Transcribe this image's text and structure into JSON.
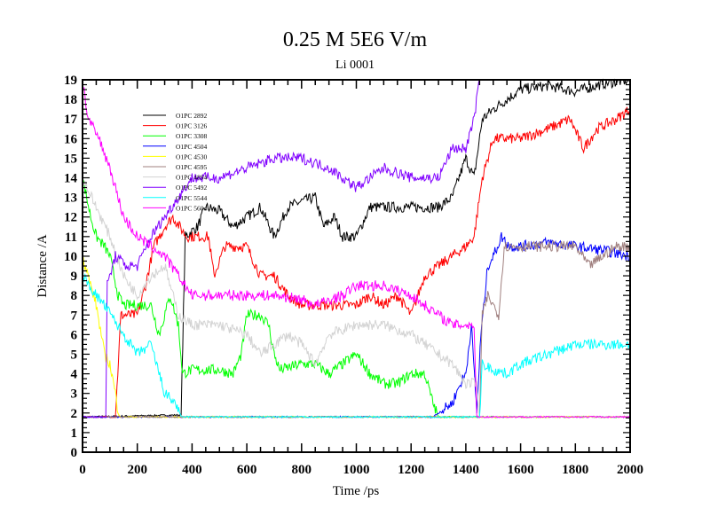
{
  "chart_data": {
    "type": "line",
    "title": "0.25 M 5E6 V/m",
    "subtitle": "Li 0001",
    "xlabel": "Time /ps",
    "ylabel": "Distance /A",
    "xlim": [
      0,
      2000
    ],
    "ylim": [
      0,
      19
    ],
    "xticks": [
      0,
      200,
      400,
      600,
      800,
      1000,
      1200,
      1400,
      1600,
      1800,
      2000
    ],
    "yticks": [
      0,
      1,
      2,
      3,
      4,
      5,
      6,
      7,
      8,
      9,
      10,
      11,
      12,
      13,
      14,
      15,
      16,
      17,
      18,
      19
    ],
    "grid": false,
    "legend_position": "top-left",
    "series": [
      {
        "name": "O1PC 2892",
        "color": "#000000",
        "points": [
          [
            0,
            1.8
          ],
          [
            360,
            1.9
          ],
          [
            375,
            11
          ],
          [
            420,
            11.5
          ],
          [
            450,
            12.5
          ],
          [
            500,
            12.3
          ],
          [
            550,
            11.5
          ],
          [
            600,
            12
          ],
          [
            650,
            12.5
          ],
          [
            700,
            11
          ],
          [
            750,
            12.5
          ],
          [
            800,
            12.8
          ],
          [
            850,
            13
          ],
          [
            880,
            11.5
          ],
          [
            920,
            12
          ],
          [
            950,
            11
          ],
          [
            1000,
            11
          ],
          [
            1050,
            12.5
          ],
          [
            1100,
            12.5
          ],
          [
            1200,
            12.5
          ],
          [
            1300,
            12.5
          ],
          [
            1350,
            13
          ],
          [
            1400,
            15
          ],
          [
            1430,
            14
          ],
          [
            1460,
            17
          ],
          [
            1500,
            17.5
          ],
          [
            1550,
            18
          ],
          [
            1600,
            18.5
          ],
          [
            1700,
            18.7
          ],
          [
            1800,
            18.4
          ],
          [
            1900,
            18.8
          ],
          [
            2000,
            19
          ]
        ]
      },
      {
        "name": "O1PC 3126",
        "color": "#ff0000",
        "points": [
          [
            0,
            1.8
          ],
          [
            120,
            1.8
          ],
          [
            140,
            7
          ],
          [
            200,
            7
          ],
          [
            230,
            8.5
          ],
          [
            260,
            10.5
          ],
          [
            300,
            11.5
          ],
          [
            330,
            12
          ],
          [
            380,
            11
          ],
          [
            420,
            11
          ],
          [
            460,
            11
          ],
          [
            480,
            9
          ],
          [
            520,
            10.5
          ],
          [
            560,
            10.5
          ],
          [
            600,
            10.5
          ],
          [
            650,
            9
          ],
          [
            700,
            9
          ],
          [
            750,
            8
          ],
          [
            800,
            7.5
          ],
          [
            900,
            7.5
          ],
          [
            1000,
            7.5
          ],
          [
            1050,
            8
          ],
          [
            1100,
            7.5
          ],
          [
            1150,
            8
          ],
          [
            1200,
            7
          ],
          [
            1250,
            9
          ],
          [
            1300,
            9.5
          ],
          [
            1350,
            10
          ],
          [
            1400,
            10.5
          ],
          [
            1430,
            11
          ],
          [
            1460,
            14
          ],
          [
            1500,
            16
          ],
          [
            1550,
            16
          ],
          [
            1600,
            16
          ],
          [
            1700,
            16.5
          ],
          [
            1780,
            17
          ],
          [
            1830,
            15.5
          ],
          [
            1880,
            16.5
          ],
          [
            1950,
            17
          ],
          [
            2000,
            17.5
          ]
        ]
      },
      {
        "name": "O1PC 3308",
        "color": "#00ff00",
        "points": [
          [
            0,
            14
          ],
          [
            30,
            12
          ],
          [
            50,
            11
          ],
          [
            80,
            10.5
          ],
          [
            100,
            10
          ],
          [
            130,
            8
          ],
          [
            150,
            7.5
          ],
          [
            200,
            7.5
          ],
          [
            250,
            7.5
          ],
          [
            280,
            6
          ],
          [
            320,
            8
          ],
          [
            350,
            6.5
          ],
          [
            365,
            4
          ],
          [
            400,
            4.2
          ],
          [
            450,
            4.2
          ],
          [
            500,
            4.2
          ],
          [
            550,
            4
          ],
          [
            580,
            5
          ],
          [
            600,
            7
          ],
          [
            650,
            7
          ],
          [
            680,
            6.5
          ],
          [
            700,
            5
          ],
          [
            720,
            4.2
          ],
          [
            800,
            4.5
          ],
          [
            850,
            4.5
          ],
          [
            900,
            4
          ],
          [
            950,
            4.5
          ],
          [
            1000,
            5
          ],
          [
            1050,
            4
          ],
          [
            1100,
            3.5
          ],
          [
            1150,
            3.5
          ],
          [
            1200,
            4
          ],
          [
            1250,
            4
          ],
          [
            1280,
            2.5
          ],
          [
            1300,
            1.8
          ],
          [
            2000,
            1.8
          ]
        ]
      },
      {
        "name": "O1PC 4504",
        "color": "#0000ff",
        "points": [
          [
            0,
            1.8
          ],
          [
            1280,
            1.8
          ],
          [
            1300,
            2
          ],
          [
            1350,
            2.5
          ],
          [
            1380,
            3.5
          ],
          [
            1400,
            4
          ],
          [
            1420,
            6.5
          ],
          [
            1440,
            2
          ],
          [
            1455,
            6
          ],
          [
            1480,
            9.5
          ],
          [
            1500,
            10
          ],
          [
            1530,
            11
          ],
          [
            1560,
            10.5
          ],
          [
            1600,
            10.5
          ],
          [
            1700,
            10.7
          ],
          [
            1800,
            10.5
          ],
          [
            1900,
            10.3
          ],
          [
            2000,
            10
          ]
        ]
      },
      {
        "name": "O1PC 4530",
        "color": "#ffff00",
        "points": [
          [
            0,
            10
          ],
          [
            20,
            9
          ],
          [
            50,
            7.5
          ],
          [
            80,
            5
          ],
          [
            100,
            4.5
          ],
          [
            120,
            3
          ],
          [
            130,
            2
          ],
          [
            140,
            1.8
          ],
          [
            2000,
            1.8
          ]
        ]
      },
      {
        "name": "O1PC 4595",
        "color": "#a0807f",
        "points": [
          [
            0,
            1.8
          ],
          [
            1450,
            1.8
          ],
          [
            1460,
            7
          ],
          [
            1480,
            8
          ],
          [
            1520,
            7
          ],
          [
            1540,
            10.5
          ],
          [
            1600,
            10.5
          ],
          [
            1700,
            10.5
          ],
          [
            1800,
            10.5
          ],
          [
            1850,
            9.5
          ],
          [
            1900,
            10
          ],
          [
            1950,
            10.5
          ],
          [
            2000,
            10.5
          ]
        ]
      },
      {
        "name": "O1PC 4894",
        "color": "#d3d3d3",
        "points": [
          [
            0,
            14
          ],
          [
            50,
            12.5
          ],
          [
            100,
            11
          ],
          [
            150,
            9
          ],
          [
            200,
            8
          ],
          [
            250,
            9
          ],
          [
            300,
            9.5
          ],
          [
            350,
            7
          ],
          [
            400,
            6.5
          ],
          [
            500,
            6.5
          ],
          [
            600,
            6
          ],
          [
            650,
            5
          ],
          [
            700,
            5.5
          ],
          [
            750,
            6
          ],
          [
            800,
            5.5
          ],
          [
            850,
            4.5
          ],
          [
            900,
            6
          ],
          [
            1000,
            6.5
          ],
          [
            1100,
            6.5
          ],
          [
            1200,
            6
          ],
          [
            1300,
            5
          ],
          [
            1350,
            4.5
          ],
          [
            1400,
            3.5
          ],
          [
            1440,
            3.5
          ],
          [
            1450,
            1.8
          ],
          [
            2000,
            1.8
          ]
        ]
      },
      {
        "name": "O1PC 5492",
        "color": "#8000ff",
        "points": [
          [
            0,
            1.8
          ],
          [
            85,
            1.8
          ],
          [
            90,
            8.5
          ],
          [
            120,
            10
          ],
          [
            160,
            9.5
          ],
          [
            200,
            9.5
          ],
          [
            250,
            11
          ],
          [
            300,
            12
          ],
          [
            350,
            13
          ],
          [
            400,
            14
          ],
          [
            500,
            14
          ],
          [
            600,
            14.5
          ],
          [
            700,
            15
          ],
          [
            800,
            15
          ],
          [
            900,
            14.5
          ],
          [
            1000,
            13.5
          ],
          [
            1100,
            14.5
          ],
          [
            1200,
            14
          ],
          [
            1300,
            14
          ],
          [
            1350,
            15.5
          ],
          [
            1400,
            15.5
          ],
          [
            1430,
            17
          ],
          [
            1450,
            19
          ]
        ]
      },
      {
        "name": "O1PC 5544",
        "color": "#00ffff",
        "points": [
          [
            0,
            9
          ],
          [
            50,
            8
          ],
          [
            80,
            7.5
          ],
          [
            150,
            6
          ],
          [
            200,
            5
          ],
          [
            250,
            5.5
          ],
          [
            300,
            3
          ],
          [
            340,
            2.5
          ],
          [
            360,
            1.8
          ],
          [
            1450,
            1.8
          ],
          [
            1460,
            4.5
          ],
          [
            1500,
            4.2
          ],
          [
            1550,
            4
          ],
          [
            1600,
            4.5
          ],
          [
            1700,
            5
          ],
          [
            1800,
            5.5
          ],
          [
            1900,
            5.5
          ],
          [
            2000,
            5.5
          ]
        ]
      },
      {
        "name": "O1PC 5604",
        "color": "#ff00ff",
        "points": [
          [
            0,
            19
          ],
          [
            20,
            17
          ],
          [
            60,
            16
          ],
          [
            100,
            14.5
          ],
          [
            150,
            12
          ],
          [
            200,
            11
          ],
          [
            250,
            10.5
          ],
          [
            300,
            10
          ],
          [
            350,
            9
          ],
          [
            400,
            8
          ],
          [
            500,
            8
          ],
          [
            600,
            8
          ],
          [
            700,
            8
          ],
          [
            800,
            7.8
          ],
          [
            850,
            7.5
          ],
          [
            950,
            8
          ],
          [
            1000,
            8.5
          ],
          [
            1100,
            8.5
          ],
          [
            1200,
            8
          ],
          [
            1250,
            7.5
          ],
          [
            1300,
            7
          ],
          [
            1350,
            6.5
          ],
          [
            1400,
            6.5
          ],
          [
            1430,
            6.5
          ],
          [
            1440,
            1.8
          ],
          [
            2000,
            1.8
          ]
        ]
      }
    ]
  }
}
